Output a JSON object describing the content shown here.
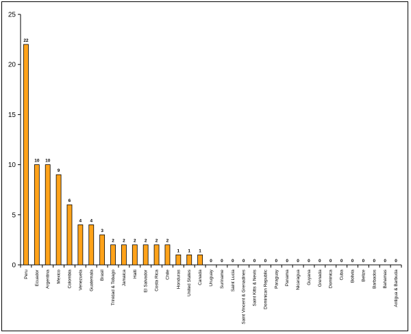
{
  "chart_data": {
    "type": "bar",
    "categories": [
      "Peru",
      "Ecuador",
      "Argentina",
      "Mexico",
      "Colombia",
      "Venezuela",
      "Guatemala",
      "Brasil",
      "Trinidad & Tobago",
      "Jamaica",
      "Haiti",
      "El Salvador",
      "Costa Rica",
      "Chile",
      "Honduras",
      "United States",
      "Canada",
      "Uruguay",
      "Suriname",
      "Saint Lucia",
      "Saint Vincent & Grenadines",
      "Saint Kitts & Nevis",
      "Dominican Republic",
      "Paraguay",
      "Panama",
      "Nicaragua",
      "Guyana",
      "Grenada",
      "Dominica",
      "Cuba",
      "Bolivia",
      "Belize",
      "Barbados",
      "Bahamas",
      "Antigua & Barbuda"
    ],
    "values": [
      22,
      10,
      10,
      9,
      6,
      4,
      4,
      3,
      2,
      2,
      2,
      2,
      2,
      2,
      1,
      1,
      1,
      0,
      0,
      0,
      0,
      0,
      0,
      0,
      0,
      0,
      0,
      0,
      0,
      0,
      0,
      0,
      0,
      0,
      0
    ],
    "value_labels": [
      "22",
      "10",
      "10",
      "9",
      "6",
      "4",
      "4",
      "3",
      "2",
      "2",
      "2",
      "2",
      "2",
      "2",
      "1",
      "1",
      "1",
      "0",
      "0",
      "0",
      "0",
      "0",
      "0",
      "0",
      "0",
      "0",
      "0",
      "0",
      "0",
      "0",
      "0",
      "0",
      "0",
      "0",
      "0"
    ],
    "y_ticks": [
      "0",
      "5",
      "10",
      "15",
      "20",
      "25"
    ],
    "ylim": [
      0,
      25
    ],
    "grid": false,
    "colors": {
      "bar_fill": "#FFA31A",
      "bar_stroke": "#000000"
    }
  }
}
